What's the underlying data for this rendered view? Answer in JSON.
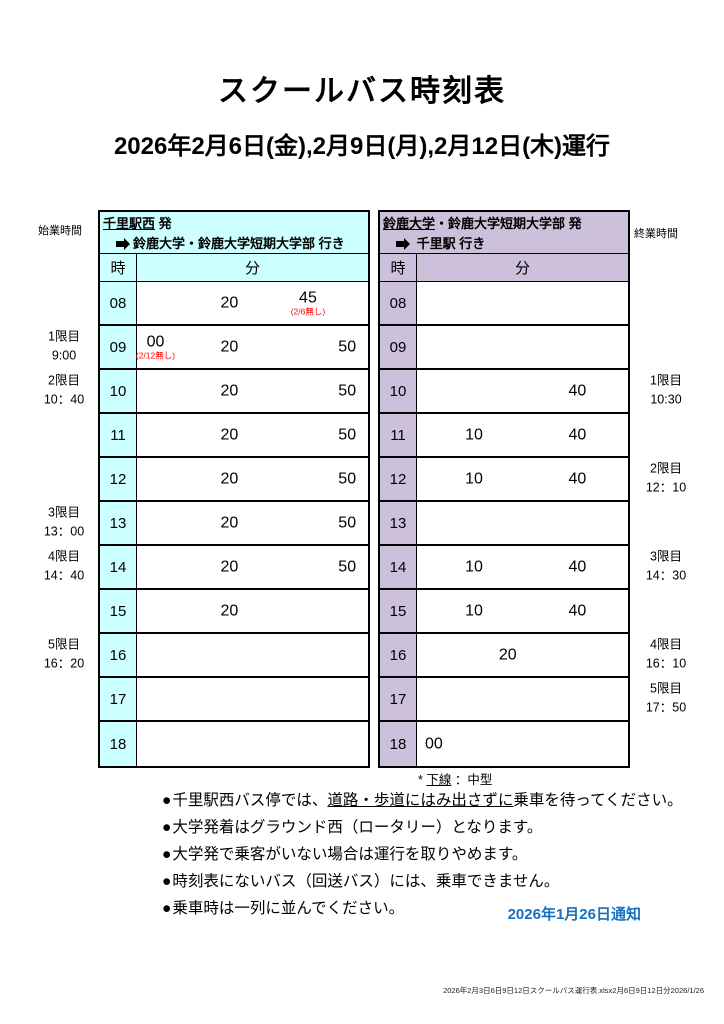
{
  "page": {
    "title": "スクールバス時刻表",
    "subtitle": "2026年2月6日(金),2月9日(月),2月12日(木)運行",
    "notice_date": "2026年1月26日通知",
    "file_footer": "2026年2月3日6日9日12日スクールバス運行表.xlsx2月6日9日12日分2026/1/26"
  },
  "gutters": {
    "start_label": "始業時間",
    "end_label": "終業時間"
  },
  "colors": {
    "departure_accent": "#CCFFFF",
    "return_accent": "#CCC0DA",
    "note_red": "#FF0000",
    "notice_blue": "#1470C0"
  },
  "legend": {
    "star": "*",
    "underlined": "下線",
    "rest": "：中型"
  },
  "notes": {
    "bullet": "●",
    "items": [
      {
        "lead": "千里駅西バス停では、",
        "underline": "道路・歩道にはみ出さずに",
        "tail": "乗車を待ってください。"
      },
      {
        "lead": "大学発着はグラウンド西（ロータリー）となります。",
        "underline": "",
        "tail": ""
      },
      {
        "lead": "大学発で乗客がいない場合は運行を取りやめます。",
        "underline": "",
        "tail": ""
      },
      {
        "lead": "時刻表にないバス（回送バス）には、乗車できません。",
        "underline": "",
        "tail": ""
      },
      {
        "lead": "乗車時は一列に並んでください。",
        "underline": "",
        "tail": ""
      }
    ]
  },
  "tables": [
    {
      "id": "departure",
      "origin_underlined": "千里駅西",
      "origin_rest": " 発",
      "destination": "鈴鹿大学・鈴鹿大学短期大学部 行き",
      "hour_col": "時",
      "minute_col": "分",
      "accent": "#CCFFFF",
      "rows": [
        {
          "hour": "08",
          "minutes": [
            {
              "t": "20",
              "x": 40
            },
            {
              "t": "45",
              "x": 74,
              "note": "(2/6無し)"
            }
          ]
        },
        {
          "hour": "09",
          "minutes": [
            {
              "t": "00",
              "x": 8,
              "note": "(2/12無し)"
            },
            {
              "t": "20",
              "x": 40
            },
            {
              "t": "50",
              "x": 91
            }
          ]
        },
        {
          "hour": "10",
          "minutes": [
            {
              "t": "20",
              "x": 40
            },
            {
              "t": "50",
              "x": 91
            }
          ]
        },
        {
          "hour": "11",
          "minutes": [
            {
              "t": "20",
              "x": 40
            },
            {
              "t": "50",
              "x": 91
            }
          ]
        },
        {
          "hour": "12",
          "minutes": [
            {
              "t": "20",
              "x": 40
            },
            {
              "t": "50",
              "x": 91
            }
          ]
        },
        {
          "hour": "13",
          "minutes": [
            {
              "t": "20",
              "x": 40
            },
            {
              "t": "50",
              "x": 91
            }
          ]
        },
        {
          "hour": "14",
          "minutes": [
            {
              "t": "20",
              "x": 40
            },
            {
              "t": "50",
              "x": 91
            }
          ]
        },
        {
          "hour": "15",
          "minutes": [
            {
              "t": "20",
              "x": 40
            }
          ]
        },
        {
          "hour": "16",
          "minutes": []
        },
        {
          "hour": "17",
          "minutes": []
        },
        {
          "hour": "18",
          "minutes": []
        }
      ],
      "sessions": [
        {
          "row": "09",
          "name": "1限目",
          "time": "9:00"
        },
        {
          "row": "10",
          "name": "2限目",
          "time": "10：40"
        },
        {
          "row": "13",
          "name": "3限目",
          "time": "13：00"
        },
        {
          "row": "14",
          "name": "4限目",
          "time": "14：40"
        },
        {
          "row": "16",
          "name": "5限目",
          "time": "16：20"
        }
      ]
    },
    {
      "id": "return",
      "origin_underlined": "鈴鹿大学",
      "origin_rest": "・鈴鹿大学短期大学部 発",
      "destination": " 千里駅 行き",
      "hour_col": "時",
      "minute_col": "分",
      "accent": "#CCC0DA",
      "rows": [
        {
          "hour": "08",
          "minutes": []
        },
        {
          "hour": "09",
          "minutes": []
        },
        {
          "hour": "10",
          "minutes": [
            {
              "t": "40",
              "x": 76
            }
          ]
        },
        {
          "hour": "11",
          "minutes": [
            {
              "t": "10",
              "x": 27
            },
            {
              "t": "40",
              "x": 76
            }
          ]
        },
        {
          "hour": "12",
          "minutes": [
            {
              "t": "10",
              "x": 27
            },
            {
              "t": "40",
              "x": 76
            }
          ]
        },
        {
          "hour": "13",
          "minutes": []
        },
        {
          "hour": "14",
          "minutes": [
            {
              "t": "10",
              "x": 27
            },
            {
              "t": "40",
              "x": 76
            }
          ]
        },
        {
          "hour": "15",
          "minutes": [
            {
              "t": "10",
              "x": 27
            },
            {
              "t": "40",
              "x": 76
            }
          ]
        },
        {
          "hour": "16",
          "minutes": [
            {
              "t": "20",
              "x": 43
            }
          ]
        },
        {
          "hour": "17",
          "minutes": []
        },
        {
          "hour": "18",
          "minutes": [
            {
              "t": "00",
              "x": 8
            }
          ]
        }
      ],
      "sessions": [
        {
          "row": "10",
          "name": "1限目",
          "time": "10:30"
        },
        {
          "row": "12",
          "name": "2限目",
          "time": "12：10"
        },
        {
          "row": "14",
          "name": "3限目",
          "time": "14：30"
        },
        {
          "row": "16",
          "name": "4限目",
          "time": "16：10"
        },
        {
          "row": "17",
          "name": "5限目",
          "time": "17：50"
        }
      ]
    }
  ]
}
